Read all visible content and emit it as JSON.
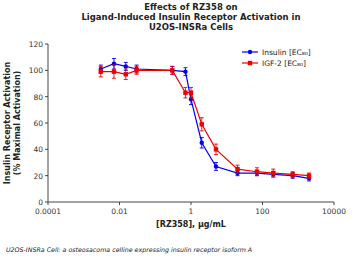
{
  "chart_data": {
    "type": "line",
    "title": "Effects of RZ358 on\nLigand-Induced Insulin Receptor Activation in\nU2OS-INSRa Cells",
    "x_label": "[RZ358], μg/mL",
    "y_label": "Insulin Receptor Activation\n(% Maximal Activation)",
    "annotations": [
      "U2OS-INSRa Cell: a osteosacoma celline expressing insulin receptor isoform A"
    ],
    "log": "x",
    "xlim": [
      0.0001,
      10000
    ],
    "xticks": [
      0.0001,
      0.01,
      1,
      100,
      10000
    ],
    "ylim": [
      0,
      120
    ],
    "yticks": [
      0,
      20,
      40,
      60,
      80,
      100,
      120
    ],
    "grid": false,
    "legend": "upper right",
    "x": [
      0.003,
      0.007,
      0.015,
      0.03,
      0.3,
      0.7,
      1.0,
      2.0,
      5.0,
      20.0,
      70.0,
      200.0,
      700.0,
      2000.0
    ],
    "series": [
      {
        "name": "Insulin [EC₈₀]",
        "color": "#0000ee",
        "marker": "circle",
        "values": [
          101,
          105,
          103,
          101,
          100,
          99,
          78,
          45,
          27,
          22,
          22,
          21,
          20,
          18
        ],
        "errors": [
          3,
          4,
          3,
          3,
          3,
          3,
          4,
          4,
          3,
          2,
          2,
          2,
          2,
          2
        ]
      },
      {
        "name": "IGF-2 [EC₈₀]",
        "color": "#ee0000",
        "marker": "square",
        "values": [
          99,
          99,
          97,
          100,
          100,
          83,
          83,
          59,
          40,
          25,
          23,
          22,
          21,
          20
        ],
        "errors": [
          4,
          5,
          4,
          3,
          3,
          4,
          4,
          5,
          4,
          3,
          3,
          3,
          2,
          2
        ]
      }
    ]
  }
}
